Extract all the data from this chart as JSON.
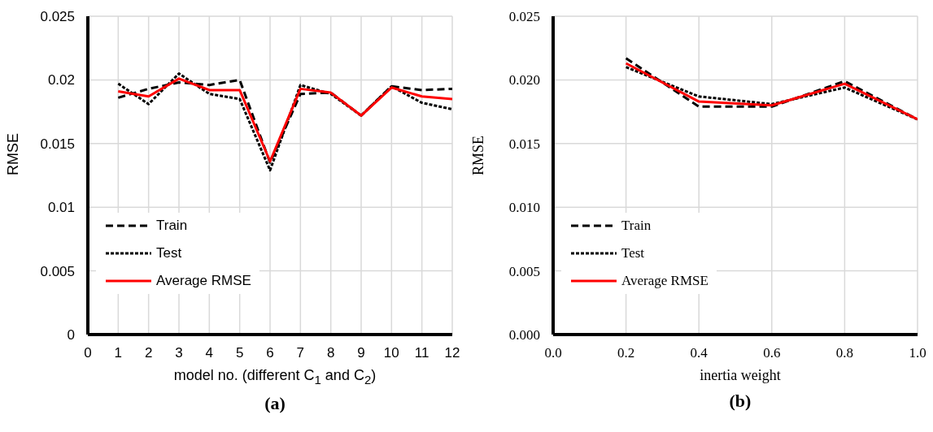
{
  "chart_data": [
    {
      "type": "line",
      "title": "(a)",
      "xlabel": "model no. (different C$_{1}$ and C$_{2}$)",
      "ylabel": "RMSE",
      "x": [
        1,
        2,
        3,
        4,
        5,
        6,
        7,
        8,
        9,
        10,
        11,
        12
      ],
      "series": [
        {
          "name": "Train",
          "color": "#000000",
          "line_style": "dashed",
          "values": [
            0.0186,
            0.0193,
            0.0198,
            0.0196,
            0.02,
            0.0135,
            0.0189,
            0.019,
            0.0172,
            0.0195,
            0.0192,
            0.0193
          ]
        },
        {
          "name": "Test",
          "color": "#000000",
          "line_style": "dotted",
          "values": [
            0.0197,
            0.0181,
            0.0205,
            0.0189,
            0.0185,
            0.0129,
            0.0196,
            0.0189,
            0.0172,
            0.0195,
            0.0182,
            0.0177
          ]
        },
        {
          "name": "Average RMSE",
          "color": "#ff0000",
          "line_style": "solid",
          "values": [
            0.0191,
            0.0187,
            0.0201,
            0.0192,
            0.0192,
            0.0136,
            0.0193,
            0.019,
            0.0172,
            0.0194,
            0.0187,
            0.0185
          ]
        }
      ],
      "xlim": [
        0,
        12
      ],
      "xticks": [
        0,
        1,
        2,
        3,
        4,
        5,
        6,
        7,
        8,
        9,
        10,
        11,
        12
      ],
      "ylim": [
        0,
        0.025
      ],
      "yticks": [
        0,
        0.005,
        {
          "value": 0.01,
          "label": "0.01"
        },
        0.015,
        {
          "value": 0.02,
          "label": "0.02"
        },
        0.025
      ],
      "grid": true,
      "legend": "bottom left",
      "marker": "none"
    },
    {
      "type": "line",
      "title": "(b)",
      "xlabel": "inertia weight",
      "ylabel": "RMSE",
      "x": [
        0.2,
        0.4,
        0.6,
        0.8,
        1.0
      ],
      "series": [
        {
          "name": "Train",
          "color": "#000000",
          "line_style": "dashed",
          "values": [
            0.0217,
            0.0179,
            0.0179,
            0.0199,
            0.0169
          ]
        },
        {
          "name": "Test",
          "color": "#000000",
          "line_style": "dotted",
          "values": [
            0.021,
            0.0187,
            0.0181,
            0.0194,
            0.0169
          ]
        },
        {
          "name": "Average RMSE",
          "color": "#ff0000",
          "line_style": "solid",
          "values": [
            0.0213,
            0.0183,
            0.018,
            0.0197,
            0.0169
          ]
        }
      ],
      "xlim": [
        0,
        1
      ],
      "xticks": [
        {
          "value": 0,
          "label": "0.0"
        },
        0.2,
        0.4,
        0.6,
        0.8,
        {
          "value": 1,
          "label": "1.0"
        }
      ],
      "ylim": [
        0,
        0.025
      ],
      "yticks": [
        {
          "value": 0,
          "label": "0.000"
        },
        0.005,
        {
          "value": 0.01,
          "label": "0.010"
        },
        0.015,
        {
          "value": 0.02,
          "label": "0.020"
        },
        0.025
      ],
      "grid": true,
      "legend": "bottom left",
      "marker": "none"
    }
  ]
}
